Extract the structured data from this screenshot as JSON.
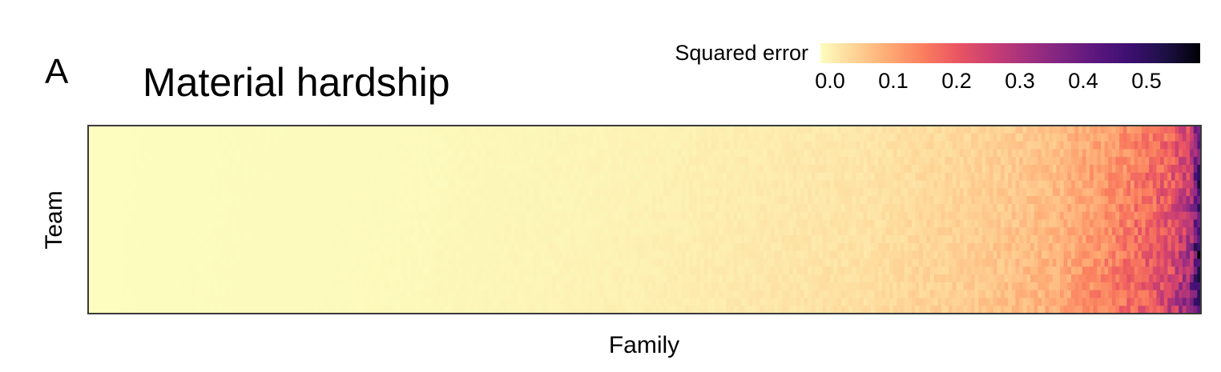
{
  "panel_label": "A",
  "chart_data": {
    "type": "heatmap",
    "title": "Material hardship",
    "xlabel": "Family",
    "ylabel": "Team",
    "colorbar": {
      "label": "Squared error",
      "range": [
        0.0,
        0.6
      ],
      "ticks": [
        "0.0",
        "0.1",
        "0.2",
        "0.3",
        "0.4",
        "0.5"
      ],
      "tick_values": [
        0.0,
        0.1,
        0.2,
        0.3,
        0.4,
        0.5
      ],
      "colormap": "magma (reversed)"
    },
    "columns_sorted_by_mean_error": true,
    "column_mean_profile": [
      {
        "position": 0.0,
        "value": 0.0
      },
      {
        "position": 0.3,
        "value": 0.005
      },
      {
        "position": 0.5,
        "value": 0.015
      },
      {
        "position": 0.7,
        "value": 0.035
      },
      {
        "position": 0.8,
        "value": 0.06
      },
      {
        "position": 0.87,
        "value": 0.09
      },
      {
        "position": 0.93,
        "value": 0.16
      },
      {
        "position": 0.97,
        "value": 0.22
      },
      {
        "position": 0.99,
        "value": 0.3
      },
      {
        "position": 1.0,
        "value": 0.52
      }
    ],
    "colors": {
      "frame": "#3a3a3a",
      "stops": [
        "#fcfdbf",
        "#fed395",
        "#fea973",
        "#fa7d5e",
        "#e95462",
        "#c83e73",
        "#a3307e",
        "#7e2482",
        "#5a167e",
        "#3b0f70",
        "#1c1044",
        "#000004"
      ]
    }
  }
}
